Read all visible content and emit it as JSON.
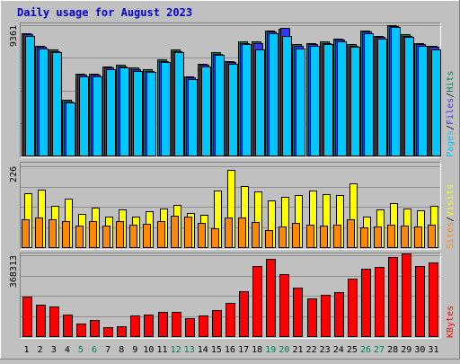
{
  "chart_data": {
    "type": "bar",
    "title": "Daily usage for August 2023",
    "categories": [
      "1",
      "2",
      "3",
      "4",
      "5",
      "6",
      "7",
      "8",
      "9",
      "10",
      "11",
      "12",
      "13",
      "14",
      "15",
      "16",
      "17",
      "18",
      "19",
      "20",
      "21",
      "22",
      "23",
      "24",
      "25",
      "26",
      "27",
      "28",
      "29",
      "30",
      "31"
    ],
    "weekend_days": [
      "5",
      "6",
      "12",
      "13",
      "19",
      "20",
      "26",
      "27"
    ],
    "panels": [
      {
        "id": "hits",
        "y_max": 9361,
        "y_max_label": "9361",
        "legend": [
          "Pages",
          "Files",
          "Hits"
        ],
        "grid": true,
        "series": [
          {
            "name": "Hits",
            "color": "#00805c",
            "values": [
              8800,
              7900,
              7600,
              4000,
              5900,
              5900,
              6400,
              6500,
              6300,
              6200,
              6900,
              7600,
              5700,
              6600,
              7400,
              6800,
              8200,
              8200,
              9000,
              9100,
              8000,
              8100,
              8200,
              8400,
              8000,
              9000,
              8600,
              9361,
              8700,
              8100,
              7900
            ]
          },
          {
            "name": "Files",
            "color": "#3333ff",
            "values": [
              8700,
              7800,
              7500,
              3900,
              5800,
              5800,
              6300,
              6400,
              6200,
              6100,
              6800,
              7500,
              5600,
              6500,
              7300,
              6700,
              8100,
              8100,
              8900,
              9150,
              7900,
              8000,
              8100,
              8300,
              7900,
              8900,
              8500,
              9300,
              8600,
              8000,
              7800
            ]
          },
          {
            "name": "Pages",
            "color": "#00c8ff",
            "values": [
              8600,
              7700,
              7400,
              3800,
              5700,
              5700,
              6200,
              6300,
              6100,
              6000,
              6700,
              7400,
              5500,
              6400,
              7200,
              6600,
              8000,
              7600,
              8800,
              8600,
              7700,
              7900,
              8000,
              8200,
              7800,
              8800,
              8400,
              9200,
              8500,
              7900,
              7600
            ]
          }
        ]
      },
      {
        "id": "visits",
        "y_max": 226,
        "y_max_label": "226",
        "legend": [
          "Sites",
          "Visits"
        ],
        "grid": true,
        "series": [
          {
            "name": "Visits",
            "color": "#ffff00",
            "values": [
              150,
              160,
              115,
              135,
              92,
              110,
              85,
              105,
              85,
              100,
              108,
              118,
              95,
              90,
              158,
              215,
              170,
              155,
              130,
              140,
              145,
              158,
              148,
              145,
              178,
              85,
              105,
              123,
              107,
              102,
              115
            ]
          },
          {
            "name": "Sites",
            "color": "#ff8800",
            "values": [
              77,
              82,
              77,
              74,
              60,
              74,
              60,
              72,
              62,
              66,
              72,
              87,
              85,
              68,
              52,
              82,
              82,
              70,
              47,
              57,
              67,
              62,
              60,
              64,
              77,
              55,
              57,
              62,
              60,
              57,
              62
            ]
          }
        ]
      },
      {
        "id": "kbytes",
        "y_max": 368313,
        "y_max_label": "368313",
        "legend": [
          "KBytes"
        ],
        "grid": true,
        "series": [
          {
            "name": "KBytes",
            "color": "#ff0000",
            "values": [
              180000,
              145000,
              135000,
              100000,
              58000,
              72000,
              40000,
              47000,
              95000,
              100000,
              110000,
              110000,
              80000,
              95000,
              118000,
              150000,
              205000,
              318000,
              352000,
              282000,
              220000,
              170000,
              190000,
              202000,
              262000,
              305000,
              315000,
              360000,
              375000,
              318000,
              335000
            ]
          }
        ]
      }
    ]
  }
}
